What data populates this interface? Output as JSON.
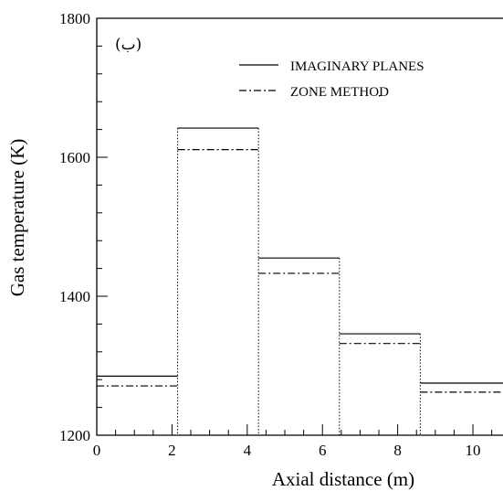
{
  "chart_data": {
    "type": "line",
    "title": "",
    "panel_label": "(ب)",
    "xlabel": "Axial distance (m)",
    "ylabel": "Gas temperature (K)",
    "xlim": [
      0,
      10.8
    ],
    "ylim": [
      1200,
      1800
    ],
    "x_ticks": [
      0,
      2,
      4,
      6,
      8,
      10
    ],
    "y_ticks": [
      1200,
      1400,
      1600,
      1800
    ],
    "zone_edges": [
      0,
      2.15,
      4.3,
      6.45,
      8.6,
      10.8
    ],
    "series": [
      {
        "name": "IMAGINARY PLANES",
        "style": "solid",
        "values": [
          1285,
          1642,
          1455,
          1346,
          1275
        ]
      },
      {
        "name": "ZONE METHOD",
        "style": "dash-dot",
        "values": [
          1271,
          1611,
          1433,
          1332,
          1262
        ]
      }
    ],
    "legend_position": "top-right",
    "grid": false
  }
}
